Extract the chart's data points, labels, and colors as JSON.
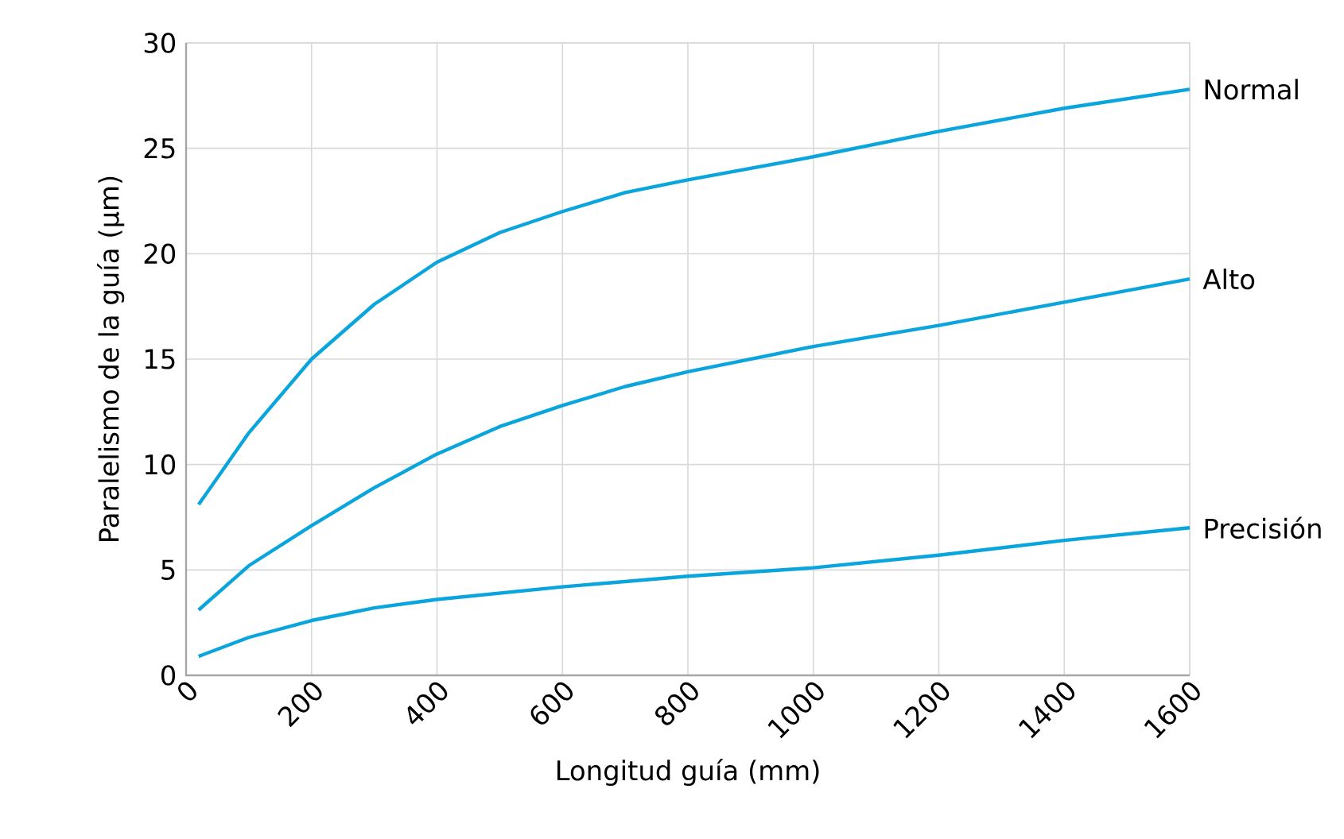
{
  "chart_data": {
    "type": "line",
    "xlabel": "Longitud guía (mm)",
    "ylabel": "Paralelismo de la guía (µm)",
    "xlim": [
      0,
      1600
    ],
    "ylim": [
      0,
      30
    ],
    "xticks": [
      0,
      200,
      400,
      600,
      800,
      1000,
      1200,
      1400,
      1600
    ],
    "yticks": [
      0,
      5,
      10,
      15,
      20,
      25,
      30
    ],
    "grid": true,
    "legend": false,
    "marker": "none",
    "line_style": "solid",
    "series": [
      {
        "name": "Normal",
        "color": "#0aa5dc",
        "x": [
          20,
          100,
          200,
          300,
          400,
          500,
          600,
          700,
          800,
          1000,
          1200,
          1400,
          1600
        ],
        "values": [
          8.1,
          11.5,
          15,
          17.6,
          19.6,
          21,
          22,
          22.9,
          23.5,
          24.6,
          25.8,
          26.9,
          27.8
        ]
      },
      {
        "name": "Alto",
        "color": "#0aa5dc",
        "x": [
          20,
          100,
          200,
          300,
          400,
          500,
          600,
          700,
          800,
          1000,
          1200,
          1400,
          1600
        ],
        "values": [
          3.1,
          5.2,
          7.1,
          8.9,
          10.5,
          11.8,
          12.8,
          13.7,
          14.4,
          15.6,
          16.6,
          17.7,
          18.8
        ]
      },
      {
        "name": "Precisión",
        "color": "#0aa5dc",
        "x": [
          20,
          100,
          200,
          300,
          400,
          600,
          800,
          1000,
          1200,
          1400,
          1600
        ],
        "values": [
          0.9,
          1.8,
          2.6,
          3.2,
          3.6,
          4.2,
          4.7,
          5.1,
          5.7,
          6.4,
          7.0
        ]
      }
    ]
  }
}
